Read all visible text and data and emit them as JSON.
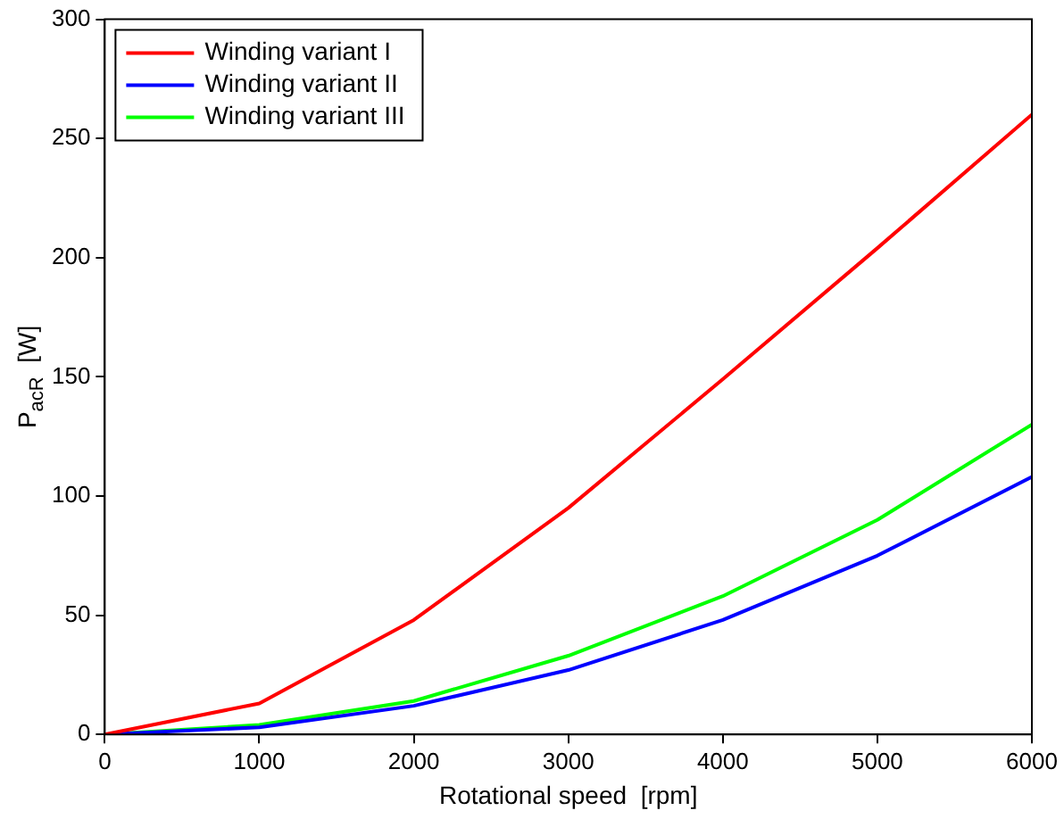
{
  "chart_data": {
    "type": "line",
    "xlabel": "Rotational speed  [rpm]",
    "ylabel": "P$_{acR}$  [W]",
    "x": [
      0,
      1000,
      2000,
      3000,
      4000,
      5000,
      6000
    ],
    "series": [
      {
        "name": "Winding variant I",
        "color": "#ff0000",
        "values": [
          0,
          13,
          48,
          95,
          149,
          204,
          260
        ]
      },
      {
        "name": "Winding variant II",
        "color": "#0000ff",
        "values": [
          0,
          3,
          12,
          27,
          48,
          75,
          108
        ]
      },
      {
        "name": "Winding variant III",
        "color": "#00ff00",
        "values": [
          0,
          4,
          14,
          33,
          58,
          90,
          130
        ]
      }
    ],
    "xlim": [
      0,
      6000
    ],
    "xticks": [
      0,
      1000,
      2000,
      3000,
      4000,
      5000,
      6000
    ],
    "ylim": [
      0,
      300
    ],
    "yticks": [
      0,
      50,
      100,
      150,
      200,
      250,
      300
    ],
    "grid": false,
    "legend": "top left",
    "marker": "none",
    "line_style": "solid"
  }
}
